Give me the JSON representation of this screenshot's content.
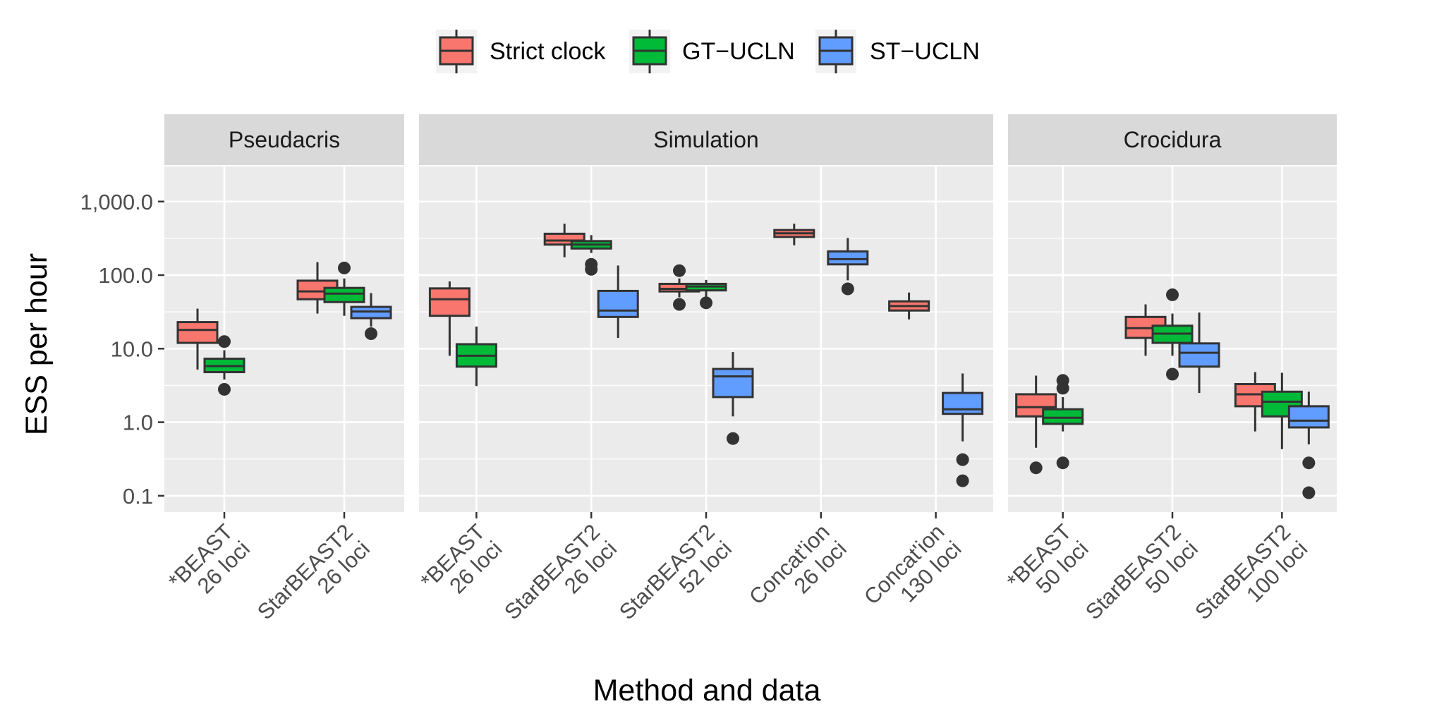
{
  "chart_data": {
    "type": "box",
    "ylabel": "ESS per hour",
    "xlabel": "Method and data",
    "yscale": "log10",
    "ylim": [
      0.06,
      3000
    ],
    "yticks": [
      {
        "value": 0.1,
        "label": "0.1"
      },
      {
        "value": 1,
        "label": "1.0"
      },
      {
        "value": 10,
        "label": "10.0"
      },
      {
        "value": 100,
        "label": "100.0"
      },
      {
        "value": 1000,
        "label": "1,000.0"
      }
    ],
    "legend": {
      "position": "top",
      "items": [
        {
          "key": "strict",
          "name": "Strict clock",
          "color": "#F8766D"
        },
        {
          "key": "gt",
          "name": "GT−UCLN",
          "color": "#00BA38"
        },
        {
          "key": "st",
          "name": "ST−UCLN",
          "color": "#619CFF"
        }
      ]
    },
    "panels": [
      {
        "name": "Pseudacris",
        "categories": [
          {
            "line1": "*BEAST",
            "line2": "26 loci",
            "boxes": [
              {
                "series": "strict",
                "whislo": 5.2,
                "q1": 12,
                "med": 18,
                "q3": 23,
                "whishi": 35,
                "outliers": []
              },
              {
                "series": "gt",
                "whislo": 3.8,
                "q1": 4.8,
                "med": 5.8,
                "q3": 7.3,
                "whishi": 9.5,
                "outliers": [
                  12.5,
                  2.8
                ]
              }
            ]
          },
          {
            "line1": "StarBEAST2",
            "line2": "26 loci",
            "boxes": [
              {
                "series": "strict",
                "whislo": 30,
                "q1": 47,
                "med": 60,
                "q3": 84,
                "whishi": 150,
                "outliers": []
              },
              {
                "series": "gt",
                "whislo": 28,
                "q1": 43,
                "med": 56,
                "q3": 67,
                "whishi": 90,
                "outliers": [
                  125
                ]
              },
              {
                "series": "st",
                "whislo": 20,
                "q1": 26,
                "med": 32,
                "q3": 37,
                "whishi": 57,
                "outliers": [
                  16
                ]
              }
            ]
          }
        ]
      },
      {
        "name": "Simulation",
        "categories": [
          {
            "line1": "*BEAST",
            "line2": "26 loci",
            "boxes": [
              {
                "series": "strict",
                "whislo": 8,
                "q1": 28,
                "med": 47,
                "q3": 66,
                "whishi": 82,
                "outliers": []
              },
              {
                "series": "gt",
                "whislo": 3.1,
                "q1": 5.7,
                "med": 8,
                "q3": 11.5,
                "whishi": 20,
                "outliers": []
              }
            ]
          },
          {
            "line1": "StarBEAST2",
            "line2": "26 loci",
            "boxes": [
              {
                "series": "strict",
                "whislo": 175,
                "q1": 260,
                "med": 295,
                "q3": 365,
                "whishi": 500,
                "outliers": []
              },
              {
                "series": "gt",
                "whislo": 200,
                "q1": 230,
                "med": 260,
                "q3": 290,
                "whishi": 350,
                "outliers": [
                  140,
                  120
                ]
              },
              {
                "series": "st",
                "whislo": 14,
                "q1": 27,
                "med": 33,
                "q3": 61,
                "whishi": 135,
                "outliers": []
              }
            ]
          },
          {
            "line1": "StarBEAST2",
            "line2": "52 loci",
            "boxes": [
              {
                "series": "strict",
                "whislo": 50,
                "q1": 60,
                "med": 65,
                "q3": 76,
                "whishi": 90,
                "outliers": [
                  115,
                  40
                ]
              },
              {
                "series": "gt",
                "whislo": 50,
                "q1": 62,
                "med": 70,
                "q3": 76,
                "whishi": 86,
                "outliers": [
                  42
                ]
              },
              {
                "series": "st",
                "whislo": 1.2,
                "q1": 2.2,
                "med": 4.2,
                "q3": 5.3,
                "whishi": 9,
                "outliers": [
                  0.6
                ]
              }
            ]
          },
          {
            "line1": "Concat'ion",
            "line2": "26 loci",
            "boxes": [
              {
                "series": "strict",
                "whislo": 255,
                "q1": 330,
                "med": 370,
                "q3": 410,
                "whishi": 500,
                "outliers": []
              },
              {
                "series": "st",
                "whislo": 85,
                "q1": 140,
                "med": 165,
                "q3": 210,
                "whishi": 320,
                "outliers": [
                  65
                ]
              }
            ]
          },
          {
            "line1": "Concat'ion",
            "line2": "130 loci",
            "boxes": [
              {
                "series": "strict",
                "whislo": 25,
                "q1": 33,
                "med": 38,
                "q3": 44,
                "whishi": 58,
                "outliers": []
              },
              {
                "series": "st",
                "whislo": 0.55,
                "q1": 1.3,
                "med": 1.5,
                "q3": 2.5,
                "whishi": 4.6,
                "outliers": [
                  0.31,
                  0.16
                ]
              }
            ]
          }
        ]
      },
      {
        "name": "Crocidura",
        "categories": [
          {
            "line1": "*BEAST",
            "line2": "50 loci",
            "boxes": [
              {
                "series": "strict",
                "whislo": 0.45,
                "q1": 1.2,
                "med": 1.6,
                "q3": 2.4,
                "whishi": 4.3,
                "outliers": [
                  0.24
                ]
              },
              {
                "series": "gt",
                "whislo": 0.75,
                "q1": 0.95,
                "med": 1.15,
                "q3": 1.5,
                "whishi": 2.2,
                "outliers": [
                  3.7,
                  2.9,
                  0.28
                ]
              }
            ]
          },
          {
            "line1": "StarBEAST2",
            "line2": "50 loci",
            "boxes": [
              {
                "series": "strict",
                "whislo": 8,
                "q1": 14,
                "med": 19,
                "q3": 27,
                "whishi": 40,
                "outliers": []
              },
              {
                "series": "gt",
                "whislo": 8,
                "q1": 12,
                "med": 16,
                "q3": 20.5,
                "whishi": 30,
                "outliers": [
                  54,
                  4.5
                ]
              },
              {
                "series": "st",
                "whislo": 2.5,
                "q1": 5.7,
                "med": 8.8,
                "q3": 11.8,
                "whishi": 31,
                "outliers": []
              }
            ]
          },
          {
            "line1": "StarBEAST2",
            "line2": "100 loci",
            "boxes": [
              {
                "series": "strict",
                "whislo": 0.75,
                "q1": 1.65,
                "med": 2.4,
                "q3": 3.3,
                "whishi": 4.8,
                "outliers": []
              },
              {
                "series": "gt",
                "whislo": 0.43,
                "q1": 1.2,
                "med": 1.9,
                "q3": 2.6,
                "whishi": 4.7,
                "outliers": []
              },
              {
                "series": "st",
                "whislo": 0.5,
                "q1": 0.85,
                "med": 1.05,
                "q3": 1.65,
                "whishi": 2.6,
                "outliers": [
                  0.28,
                  0.11
                ]
              }
            ]
          }
        ]
      }
    ]
  }
}
